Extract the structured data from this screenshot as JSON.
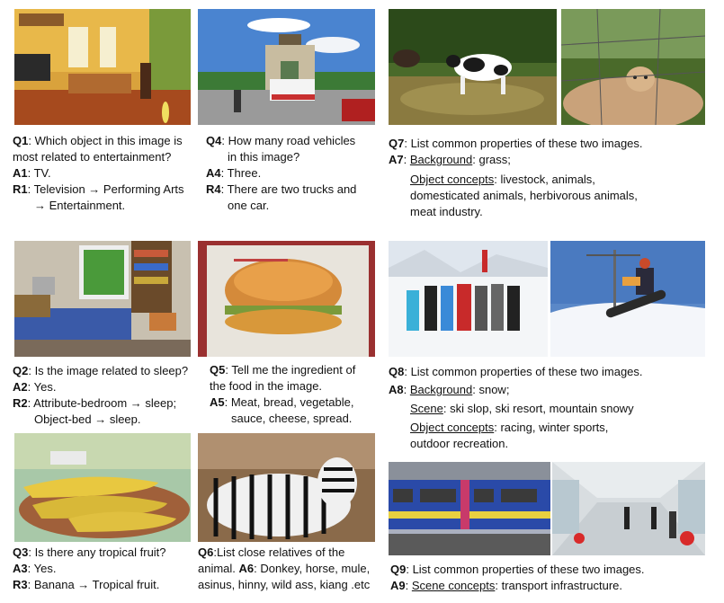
{
  "q1": {
    "q_label": "Q1",
    "q_text": ": Which object in this image is",
    "q_text2": "most related to entertainment?",
    "a_label": "A1",
    "a_text": ": TV.",
    "r_label": "R1",
    "r_text": ": Television → Performing Arts",
    "r_text2": "→ Entertainment."
  },
  "q2": {
    "q_label": "Q2",
    "q_text": ": Is the image related to sleep?",
    "a_label": "A2",
    "a_text": ": Yes.",
    "r_label": "R2",
    "r_text": ": Attribute-bedroom → sleep;",
    "r_text2": "Object-bed → sleep."
  },
  "q3": {
    "q_label": "Q3",
    "q_text": ": Is there any tropical fruit?",
    "a_label": "A3",
    "a_text": ": Yes.",
    "r_label": "R3",
    "r_text": ": Banana → Tropical fruit."
  },
  "q4": {
    "q_label": "Q4",
    "q_text": ": How many road vehicles",
    "q_text2": "in this image?",
    "a_label": "A4",
    "a_text": ": Three.",
    "r_label": "R4",
    "r_text": ": There are two trucks and",
    "r_text2": "one car."
  },
  "q5": {
    "q_label": "Q5",
    "q_text": ": Tell me the ingredient of",
    "q_text2": "the food in the image.",
    "a_label": "A5",
    "a_text": ": Meat, bread, vegetable,",
    "a_text2": "sauce, cheese, spread."
  },
  "q6": {
    "q_label": "Q6",
    "q_text": ":List close relatives of the",
    "q_text2_pre": "animal. ",
    "a_label": "A6",
    "a_text": ": Donkey, horse, mule,",
    "a_text2": "asinus, hinny, wild ass, kiang .etc"
  },
  "q7": {
    "q_label": "Q7",
    "q_text": ": List common properties of these two images.",
    "a_label": "A7",
    "bg_label": "Background",
    "bg_text": ": grass;",
    "obj_label": "Object concepts",
    "obj_text": ": livestock, animals,",
    "obj_text2": "domesticated animals, herbivorous animals,",
    "obj_text3": "meat industry."
  },
  "q8": {
    "q_label": "Q8",
    "q_text": ": List common properties of these two images.",
    "a_label": "A8",
    "bg_label": "Background",
    "bg_text": ": snow;",
    "scene_label": "Scene",
    "scene_text": ": ski slop, ski resort, mountain snowy",
    "obj_label": "Object concepts",
    "obj_text": ": racing, winter sports,",
    "obj_text2": "outdoor recreation."
  },
  "q9": {
    "q_label": "Q9",
    "q_text": ": List common properties of these two images.",
    "a_label": "A9",
    "scene_label": "Scene concepts",
    "scene_text": ": transport infrastructure."
  },
  "colors": {
    "text": "#111111",
    "background": "#ffffff"
  }
}
